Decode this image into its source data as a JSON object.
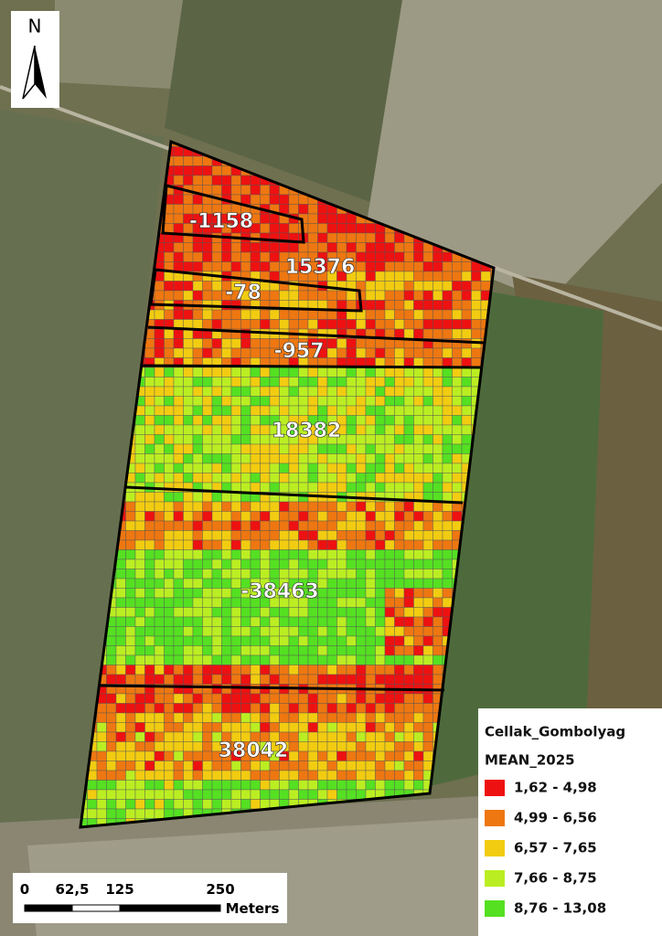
{
  "north_arrow": {
    "label": "N"
  },
  "zones": [
    {
      "label": "-1158"
    },
    {
      "label": "15376"
    },
    {
      "label": "-78"
    },
    {
      "label": "-957"
    },
    {
      "label": "18382"
    },
    {
      "label": "-38463"
    },
    {
      "label": "38042"
    }
  ],
  "legend": {
    "title": "Cellak_Gombolyag",
    "field": "MEAN_2025",
    "classes": [
      {
        "label": "1,62 - 4,98",
        "color": "#ee1111"
      },
      {
        "label": "4,99 - 6,56",
        "color": "#ee7711"
      },
      {
        "label": "6,57 - 7,65",
        "color": "#f2cc11"
      },
      {
        "label": "7,66 - 8,75",
        "color": "#bbee22"
      },
      {
        "label": "8,76 - 13,08",
        "color": "#55e022"
      }
    ]
  },
  "scale_bar": {
    "ticks": [
      "0",
      "62,5",
      "125",
      "250"
    ],
    "unit": "Meters"
  }
}
